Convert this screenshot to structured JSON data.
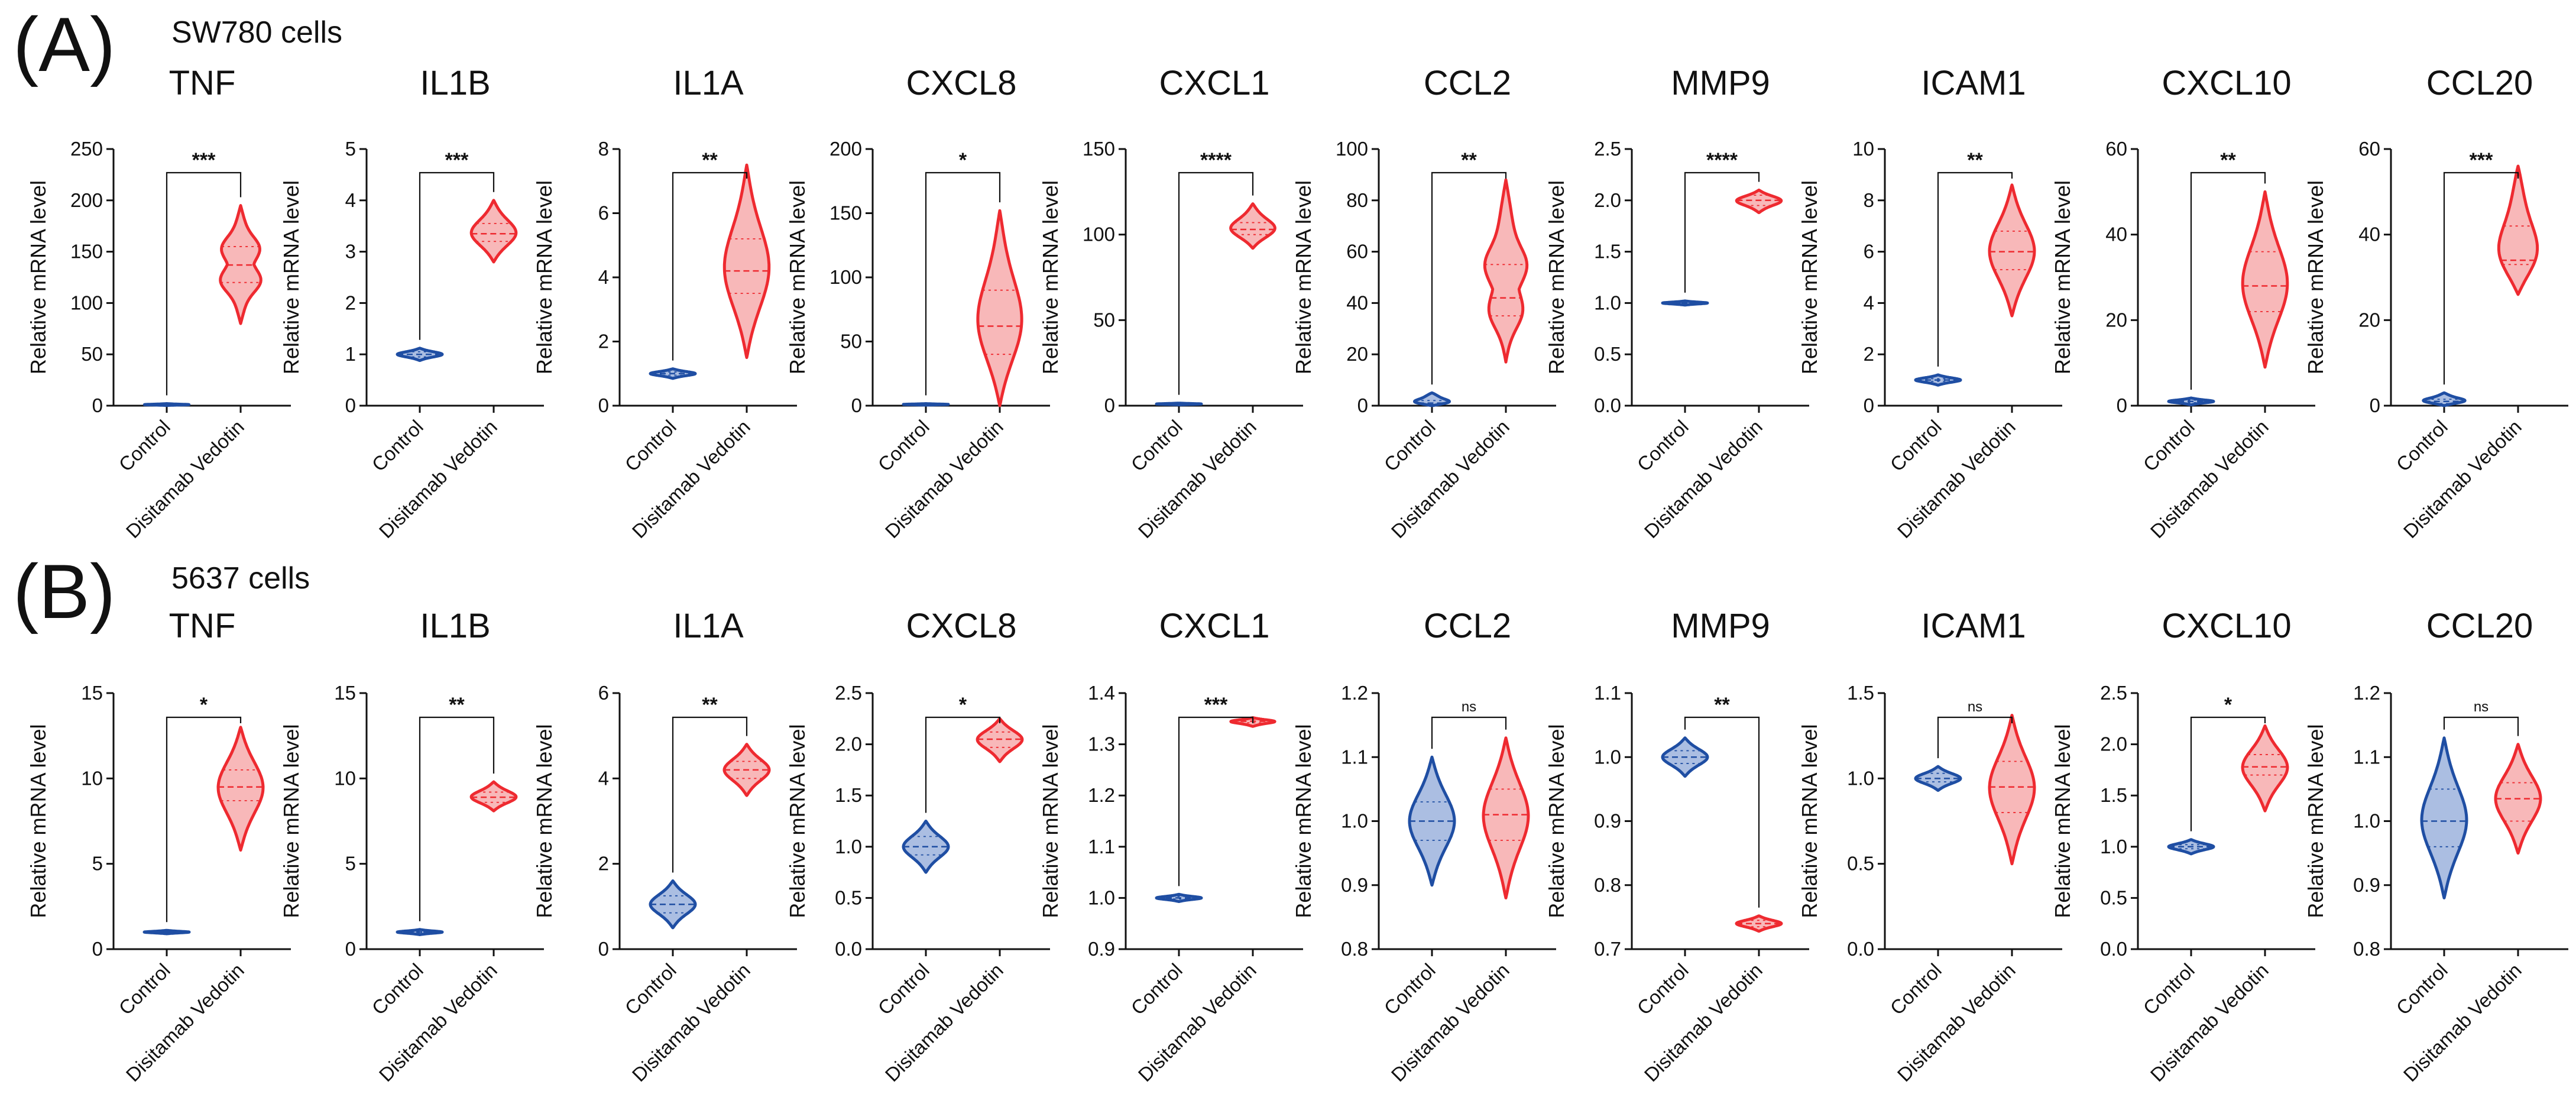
{
  "colors": {
    "control": "#1f4ea3",
    "control_fill": "#8fa8d8",
    "treated": "#ee2a30",
    "treated_fill": "#f5a0a2",
    "text": "#111111"
  },
  "groups": [
    "Control",
    "Disitamab Vedotin"
  ],
  "ylabel": "Relative mRNA level",
  "panels": [
    {
      "letter": "(A)",
      "cell_line": "SW780 cells",
      "charts": [
        {
          "type": "violin",
          "title": "TNF",
          "ylim": [
            0,
            250
          ],
          "ticks": [
            0,
            50,
            100,
            150,
            200,
            250
          ],
          "sig": "***",
          "groups": [
            {
              "name": "Control",
              "median": 1,
              "q1": 0.6,
              "q3": 1.5,
              "min": 0.2,
              "max": 2
            },
            {
              "name": "Disitamab Vedotin",
              "median": 137,
              "q1": 120,
              "q3": 155,
              "min": 80,
              "max": 195,
              "bimodal": true
            }
          ]
        },
        {
          "type": "violin",
          "title": "IL1B",
          "ylim": [
            0,
            5
          ],
          "ticks": [
            0,
            1,
            2,
            3,
            4,
            5
          ],
          "sig": "***",
          "groups": [
            {
              "name": "Control",
              "median": 1.0,
              "q1": 0.95,
              "q3": 1.05,
              "min": 0.88,
              "max": 1.12
            },
            {
              "name": "Disitamab Vedotin",
              "median": 3.35,
              "q1": 3.2,
              "q3": 3.55,
              "min": 2.8,
              "max": 4.0
            }
          ]
        },
        {
          "type": "violin",
          "title": "IL1A",
          "ylim": [
            0,
            8
          ],
          "ticks": [
            0,
            2,
            4,
            6,
            8
          ],
          "sig": "**",
          "groups": [
            {
              "name": "Control",
              "median": 1.0,
              "q1": 0.95,
              "q3": 1.05,
              "min": 0.85,
              "max": 1.15
            },
            {
              "name": "Disitamab Vedotin",
              "median": 4.2,
              "q1": 3.5,
              "q3": 5.2,
              "min": 1.5,
              "max": 7.5
            }
          ]
        },
        {
          "type": "violin",
          "title": "CXCL8",
          "ylim": [
            0,
            200
          ],
          "ticks": [
            0,
            50,
            100,
            150,
            200
          ],
          "sig": "*",
          "groups": [
            {
              "name": "Control",
              "median": 1,
              "q1": 0.7,
              "q3": 1.3,
              "min": 0.4,
              "max": 1.6
            },
            {
              "name": "Disitamab Vedotin",
              "median": 62,
              "q1": 40,
              "q3": 90,
              "min": 0,
              "max": 152
            }
          ]
        },
        {
          "type": "violin",
          "title": "CXCL1",
          "ylim": [
            0,
            150
          ],
          "ticks": [
            0,
            50,
            100,
            150
          ],
          "sig": "****",
          "groups": [
            {
              "name": "Control",
              "median": 1,
              "q1": 0.8,
              "q3": 1.2,
              "min": 0.5,
              "max": 1.5
            },
            {
              "name": "Disitamab Vedotin",
              "median": 103,
              "q1": 100,
              "q3": 107,
              "min": 92,
              "max": 118
            }
          ]
        },
        {
          "type": "violin",
          "title": "CCL2",
          "ylim": [
            0,
            100
          ],
          "ticks": [
            0,
            20,
            40,
            60,
            80,
            100
          ],
          "sig": "**",
          "groups": [
            {
              "name": "Control",
              "median": 1,
              "q1": 0.5,
              "q3": 2,
              "min": 0,
              "max": 5
            },
            {
              "name": "Disitamab Vedotin",
              "median": 42,
              "q1": 35,
              "q3": 55,
              "min": 17,
              "max": 88,
              "bimodal": true
            }
          ]
        },
        {
          "type": "violin",
          "title": "MMP9",
          "ylim": [
            0,
            2.5
          ],
          "ticks": [
            0.0,
            0.5,
            1.0,
            1.5,
            2.0,
            2.5
          ],
          "sig": "****",
          "groups": [
            {
              "name": "Control",
              "median": 1.0,
              "q1": 0.99,
              "q3": 1.01,
              "min": 0.98,
              "max": 1.02
            },
            {
              "name": "Disitamab Vedotin",
              "median": 2.0,
              "q1": 1.95,
              "q3": 2.05,
              "min": 1.88,
              "max": 2.1
            }
          ]
        },
        {
          "type": "violin",
          "title": "ICAM1",
          "ylim": [
            0,
            10
          ],
          "ticks": [
            0,
            2,
            4,
            6,
            8,
            10
          ],
          "sig": "**",
          "groups": [
            {
              "name": "Control",
              "median": 1.0,
              "q1": 0.95,
              "q3": 1.05,
              "min": 0.8,
              "max": 1.2
            },
            {
              "name": "Disitamab Vedotin",
              "median": 6.0,
              "q1": 5.3,
              "q3": 6.8,
              "min": 3.5,
              "max": 8.6
            }
          ]
        },
        {
          "type": "violin",
          "title": "CXCL10",
          "ylim": [
            0,
            60
          ],
          "ticks": [
            0,
            20,
            40,
            60
          ],
          "sig": "**",
          "groups": [
            {
              "name": "Control",
              "median": 1,
              "q1": 0.7,
              "q3": 1.3,
              "min": 0.2,
              "max": 1.8
            },
            {
              "name": "Disitamab Vedotin",
              "median": 28,
              "q1": 22,
              "q3": 36,
              "min": 9,
              "max": 50
            }
          ]
        },
        {
          "type": "violin",
          "title": "CCL20",
          "ylim": [
            0,
            60
          ],
          "ticks": [
            0,
            20,
            40,
            60
          ],
          "sig": "***",
          "groups": [
            {
              "name": "Control",
              "median": 1,
              "q1": 0.5,
              "q3": 1.5,
              "min": 0,
              "max": 3
            },
            {
              "name": "Disitamab Vedotin",
              "median": 34,
              "q1": 33,
              "q3": 42,
              "min": 26,
              "max": 56
            }
          ]
        }
      ]
    },
    {
      "letter": "(B)",
      "cell_line": "5637 cells",
      "charts": [
        {
          "type": "violin",
          "title": "TNF",
          "ylim": [
            0,
            15
          ],
          "ticks": [
            0,
            5,
            10,
            15
          ],
          "sig": "*",
          "groups": [
            {
              "name": "Control",
              "median": 1.0,
              "q1": 0.97,
              "q3": 1.03,
              "min": 0.9,
              "max": 1.1
            },
            {
              "name": "Disitamab Vedotin",
              "median": 9.5,
              "q1": 8.7,
              "q3": 10.5,
              "min": 5.8,
              "max": 13.0
            }
          ]
        },
        {
          "type": "violin",
          "title": "IL1B",
          "ylim": [
            0,
            15
          ],
          "ticks": [
            0,
            5,
            10,
            15
          ],
          "sig": "**",
          "groups": [
            {
              "name": "Control",
              "median": 1.0,
              "q1": 0.97,
              "q3": 1.03,
              "min": 0.85,
              "max": 1.15
            },
            {
              "name": "Disitamab Vedotin",
              "median": 8.9,
              "q1": 8.6,
              "q3": 9.2,
              "min": 8.1,
              "max": 9.8
            }
          ]
        },
        {
          "type": "violin",
          "title": "IL1A",
          "ylim": [
            0,
            6
          ],
          "ticks": [
            0,
            2,
            4,
            6
          ],
          "sig": "**",
          "groups": [
            {
              "name": "Control",
              "median": 1.05,
              "q1": 0.85,
              "q3": 1.25,
              "min": 0.5,
              "max": 1.6
            },
            {
              "name": "Disitamab Vedotin",
              "median": 4.2,
              "q1": 4.0,
              "q3": 4.4,
              "min": 3.6,
              "max": 4.8
            }
          ]
        },
        {
          "type": "violin",
          "title": "CXCL8",
          "ylim": [
            0,
            2.5
          ],
          "ticks": [
            0.0,
            0.5,
            1.0,
            1.5,
            2.0,
            2.5
          ],
          "sig": "*",
          "groups": [
            {
              "name": "Control",
              "median": 1.0,
              "q1": 0.92,
              "q3": 1.1,
              "min": 0.75,
              "max": 1.25
            },
            {
              "name": "Disitamab Vedotin",
              "median": 2.05,
              "q1": 1.97,
              "q3": 2.12,
              "min": 1.83,
              "max": 2.25
            }
          ]
        },
        {
          "type": "violin",
          "title": "CXCL1",
          "ylim": [
            0.9,
            1.4
          ],
          "ticks": [
            0.9,
            1.0,
            1.1,
            1.2,
            1.3,
            1.4
          ],
          "sig": "***",
          "groups": [
            {
              "name": "Control",
              "median": 1.0,
              "q1": 0.998,
              "q3": 1.003,
              "min": 0.993,
              "max": 1.007
            },
            {
              "name": "Disitamab Vedotin",
              "median": 1.345,
              "q1": 1.342,
              "q3": 1.348,
              "min": 1.335,
              "max": 1.352
            }
          ]
        },
        {
          "type": "violin",
          "title": "CCL2",
          "ylim": [
            0.8,
            1.2
          ],
          "ticks": [
            0.8,
            0.9,
            1.0,
            1.1,
            1.2
          ],
          "sig": "ns",
          "groups": [
            {
              "name": "Control",
              "median": 1.0,
              "q1": 0.97,
              "q3": 1.03,
              "min": 0.9,
              "max": 1.1
            },
            {
              "name": "Disitamab Vedotin",
              "median": 1.01,
              "q1": 0.97,
              "q3": 1.05,
              "min": 0.88,
              "max": 1.13
            }
          ]
        },
        {
          "type": "violin",
          "title": "MMP9",
          "ylim": [
            0.7,
            1.1
          ],
          "ticks": [
            0.7,
            0.8,
            0.9,
            1.0,
            1.1
          ],
          "sig": "**",
          "groups": [
            {
              "name": "Control",
              "median": 1.0,
              "q1": 0.99,
              "q3": 1.01,
              "min": 0.97,
              "max": 1.03
            },
            {
              "name": "Disitamab Vedotin",
              "median": 0.74,
              "q1": 0.735,
              "q3": 0.745,
              "min": 0.728,
              "max": 0.752
            }
          ]
        },
        {
          "type": "violin",
          "title": "ICAM1",
          "ylim": [
            0,
            1.5
          ],
          "ticks": [
            0.0,
            0.5,
            1.0,
            1.5
          ],
          "sig": "ns",
          "groups": [
            {
              "name": "Control",
              "median": 1.0,
              "q1": 0.98,
              "q3": 1.03,
              "min": 0.93,
              "max": 1.07
            },
            {
              "name": "Disitamab Vedotin",
              "median": 0.95,
              "q1": 0.8,
              "q3": 1.1,
              "min": 0.5,
              "max": 1.37
            }
          ]
        },
        {
          "type": "violin",
          "title": "CXCL10",
          "ylim": [
            0,
            2.5
          ],
          "ticks": [
            0.0,
            0.5,
            1.0,
            1.5,
            2.0,
            2.5
          ],
          "sig": "*",
          "groups": [
            {
              "name": "Control",
              "median": 1.0,
              "q1": 0.98,
              "q3": 1.02,
              "min": 0.93,
              "max": 1.07
            },
            {
              "name": "Disitamab Vedotin",
              "median": 1.78,
              "q1": 1.7,
              "q3": 1.9,
              "min": 1.35,
              "max": 2.18
            }
          ]
        },
        {
          "type": "violin",
          "title": "CCL20",
          "ylim": [
            0.8,
            1.2
          ],
          "ticks": [
            0.8,
            0.9,
            1.0,
            1.1,
            1.2
          ],
          "sig": "ns",
          "groups": [
            {
              "name": "Control",
              "median": 1.0,
              "q1": 0.96,
              "q3": 1.05,
              "min": 0.88,
              "max": 1.13
            },
            {
              "name": "Disitamab Vedotin",
              "median": 1.035,
              "q1": 1.0,
              "q3": 1.06,
              "min": 0.95,
              "max": 1.12
            }
          ]
        }
      ]
    }
  ]
}
